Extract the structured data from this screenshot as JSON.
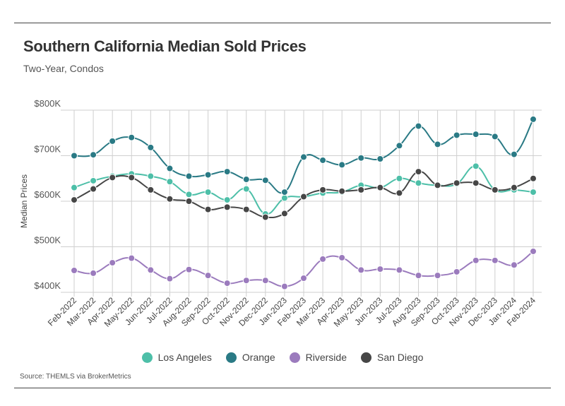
{
  "title": "Southern California Median Sold Prices",
  "subtitle": "Two-Year, Condos",
  "source": "Source:  THEMLS via BrokerMetrics",
  "chart_data": {
    "type": "line",
    "title": "Southern California Median Sold Prices",
    "subtitle": "Two-Year, Condos",
    "xlabel": "",
    "ylabel": "Median Prices",
    "ylim": [
      400000,
      800000
    ],
    "yticks": [
      400000,
      500000,
      600000,
      700000,
      800000
    ],
    "ytick_labels": [
      "$400K",
      "$500K",
      "$600K",
      "$700K",
      "$800K"
    ],
    "grid": "vertical and horizontal",
    "legend": "bottom-center",
    "categories": [
      "Feb-2022",
      "Mar-2022",
      "Apr-2022",
      "May-2022",
      "Jun-2022",
      "Jul-2022",
      "Aug-2022",
      "Sep-2022",
      "Oct-2022",
      "Nov-2022",
      "Dec-2022",
      "Jan-2023",
      "Feb-2023",
      "Mar-2023",
      "Apr-2023",
      "May-2023",
      "Jun-2023",
      "Jul-2023",
      "Aug-2023",
      "Sep-2023",
      "Oct-2023",
      "Nov-2023",
      "Dec-2023",
      "Jan-2024",
      "Feb-2024"
    ],
    "series": [
      {
        "name": "Los Angeles",
        "color": "#4dbfa8",
        "values": [
          630000,
          645000,
          655000,
          660000,
          655000,
          643000,
          615000,
          620000,
          603000,
          627000,
          572000,
          607000,
          610000,
          618000,
          620000,
          635000,
          630000,
          650000,
          640000,
          635000,
          638000,
          677000,
          625000,
          625000,
          620000
        ]
      },
      {
        "name": "Orange",
        "color": "#2a7a85",
        "values": [
          700000,
          702000,
          732000,
          740000,
          718000,
          672000,
          655000,
          658000,
          665000,
          648000,
          646000,
          620000,
          697000,
          690000,
          680000,
          695000,
          693000,
          722000,
          765000,
          725000,
          745000,
          747000,
          742000,
          703000,
          780000
        ]
      },
      {
        "name": "Riverside",
        "color": "#9b7bbd",
        "values": [
          448000,
          442000,
          465000,
          475000,
          449000,
          430000,
          450000,
          437000,
          420000,
          426000,
          426000,
          413000,
          431000,
          473000,
          476000,
          449000,
          451000,
          449000,
          437000,
          437000,
          445000,
          470000,
          470000,
          460000,
          490000
        ]
      },
      {
        "name": "San Diego",
        "color": "#464646",
        "values": [
          603000,
          627000,
          652000,
          652000,
          625000,
          605000,
          600000,
          582000,
          587000,
          582000,
          565000,
          573000,
          610000,
          625000,
          622000,
          625000,
          630000,
          618000,
          665000,
          635000,
          640000,
          640000,
          625000,
          630000,
          650000
        ]
      }
    ]
  }
}
